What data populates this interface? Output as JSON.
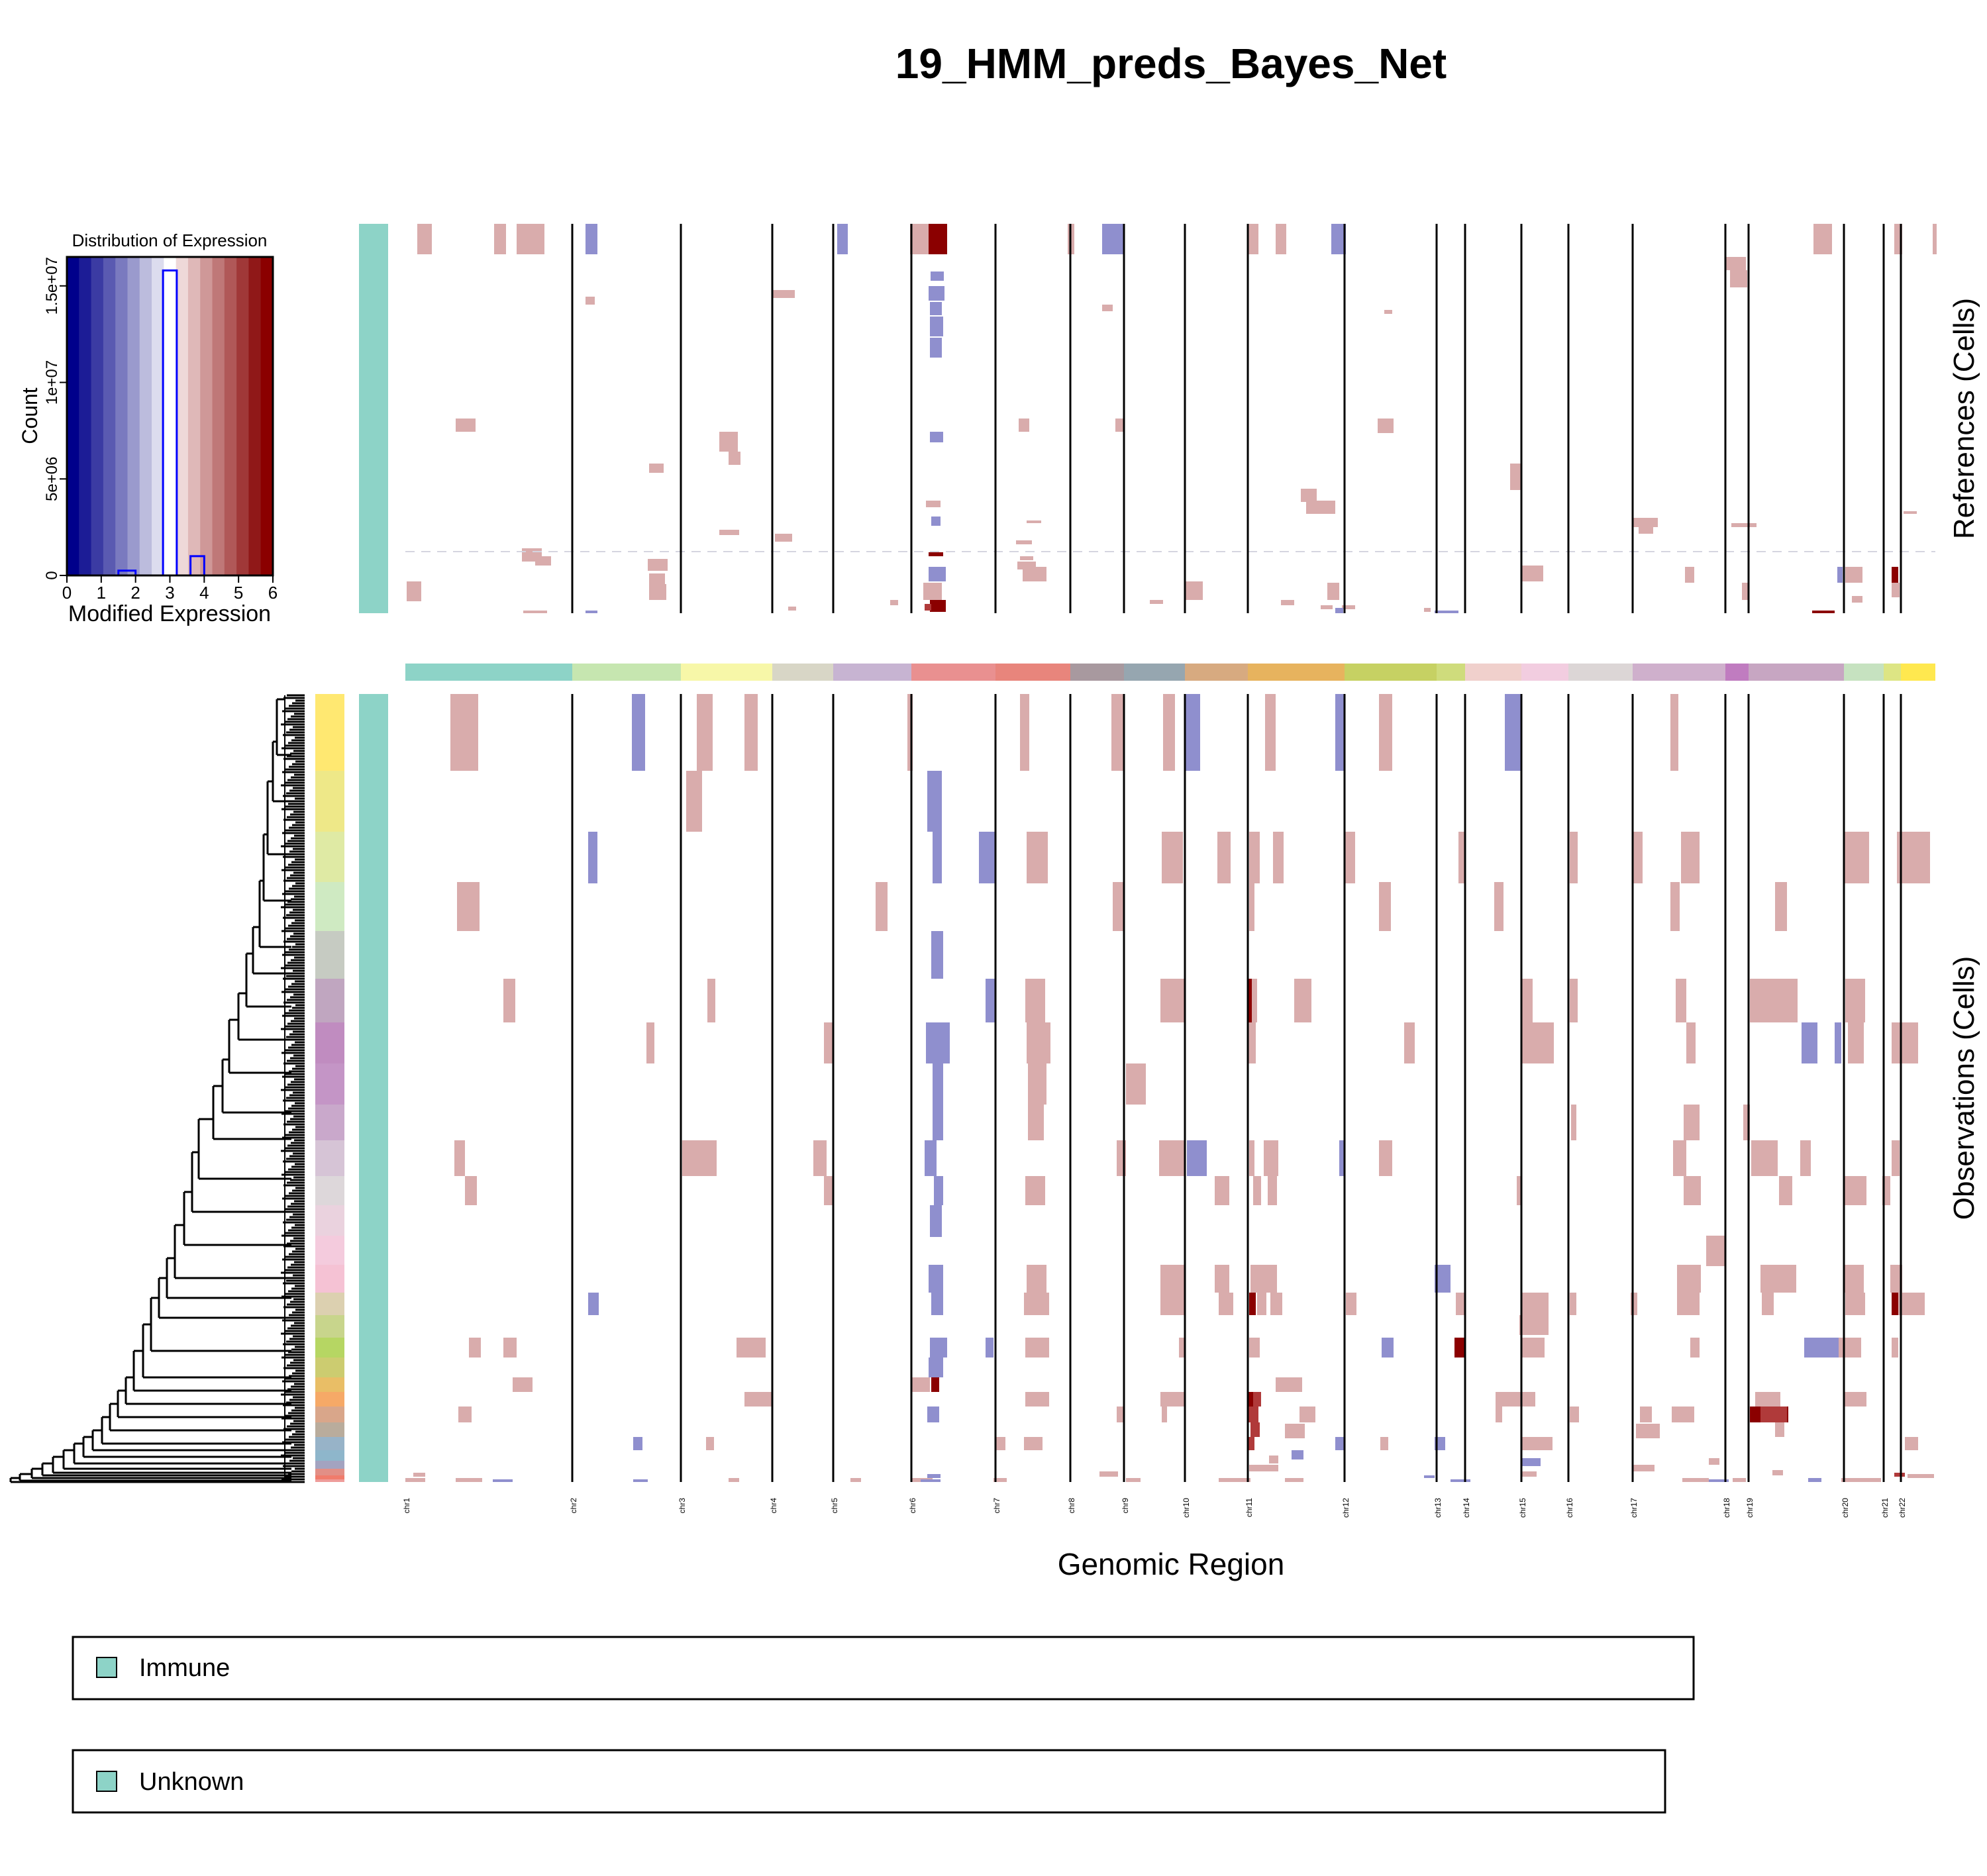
{
  "title": "19_HMM_preds_Bayes_Net",
  "chart_data": {
    "type": "heatmap",
    "title": "19_HMM_preds_Bayes_Net",
    "xlabel": "Genomic Region",
    "references_label": "References (Cells)",
    "observations_label": "Observations (Cells)",
    "chromosomes": [
      "chr1",
      "chr2",
      "chr3",
      "chr4",
      "chr5",
      "chr6",
      "chr7",
      "chr8",
      "chr9",
      "chr10",
      "chr11",
      "chr12",
      "chr13",
      "chr14",
      "chr15",
      "chr16",
      "chr17",
      "chr18",
      "chr19",
      "chr20",
      "chr21",
      "chr22"
    ],
    "chromosome_colors": [
      "#8dd3c7",
      "#c6e6b0",
      "#f7f7a8",
      "#d8d6c6",
      "#c7b4d2",
      "#e99090",
      "#e8857c",
      "#a8999f",
      "#96a6b0",
      "#d7aa80",
      "#e7b35e",
      "#c6d163",
      "#cfdc7c",
      "#f0d0cc",
      "#f2cde0",
      "#dcd6d6",
      "#cfb0cc",
      "#c07cc0",
      "#c7a6c2",
      "#c6e2c0",
      "#dde584",
      "#ffe84f"
    ],
    "color_scale": {
      "low": "#00008b",
      "mid": "#ffffff",
      "high": "#8b0000"
    },
    "histogram": {
      "title": "Distribution of Expression",
      "xlabel": "Modified Expression",
      "ylabel": "Count",
      "x_ticks": [
        "0",
        "1",
        "2",
        "3",
        "4",
        "5",
        "6"
      ],
      "y_ticks": [
        "0",
        "5e+06",
        "1e+07",
        "1.5e+07"
      ],
      "xlim": [
        0,
        6
      ],
      "ylim": [
        0,
        16500000
      ],
      "bars": [
        {
          "x0": 1.5,
          "x1": 2.0,
          "count": 250000
        },
        {
          "x0": 2.5,
          "x1": 3.0,
          "count": 0
        },
        {
          "x0": 2.8,
          "x1": 3.2,
          "count": 15800000
        },
        {
          "x0": 3.6,
          "x1": 4.0,
          "count": 1000000
        }
      ]
    },
    "reference_annotation": "Immune",
    "observation_annotation": "Unknown",
    "cluster_colors": [
      "#ffe871",
      "#eee888",
      "#dfeaa4",
      "#cfeac2",
      "#c6cbc2",
      "#c0a6c0",
      "#c08cc0",
      "#c495c6",
      "#c9a8cb",
      "#d6c4d6",
      "#ddd7da",
      "#ead2de",
      "#f4cbdd",
      "#f5c2d4",
      "#dcd0b0",
      "#c8d58c",
      "#b6d663",
      "#cccc70",
      "#e9be66",
      "#f6a967",
      "#d9a68a",
      "#b9ac9c",
      "#97b3c8",
      "#8eb6cb",
      "#a3a3c0",
      "#e28f86",
      "#f07c6c",
      "#ee9c9a"
    ]
  },
  "legend": {
    "items": [
      {
        "label": "Immune",
        "color": "#8dd3c7"
      },
      {
        "label": "Unknown",
        "color": "#8dd3c7"
      }
    ]
  }
}
